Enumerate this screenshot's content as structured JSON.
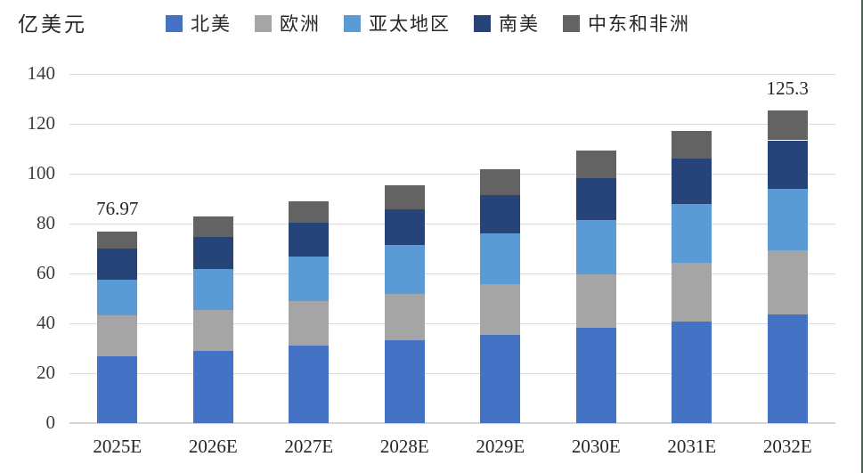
{
  "chart": {
    "unit_label": "亿美元"
  },
  "chart_data": {
    "type": "bar",
    "stacked": true,
    "title": "",
    "xlabel": "",
    "ylabel": "亿美元",
    "categories": [
      "2025E",
      "2026E",
      "2027E",
      "2028E",
      "2029E",
      "2030E",
      "2031E",
      "2032E"
    ],
    "series": [
      {
        "name": "北美",
        "color": "#4472C4",
        "values": [
          26.9,
          28.9,
          31.0,
          33.2,
          35.5,
          38.2,
          40.8,
          43.6
        ]
      },
      {
        "name": "欧洲",
        "color": "#A5A5A5",
        "values": [
          16.3,
          16.5,
          18.0,
          18.7,
          20.3,
          21.3,
          23.4,
          25.6
        ]
      },
      {
        "name": "亚太地区",
        "color": "#5B9BD5",
        "values": [
          14.4,
          16.5,
          17.9,
          19.7,
          20.2,
          22.0,
          23.6,
          24.8
        ]
      },
      {
        "name": "南美",
        "color": "#264478",
        "values": [
          12.3,
          12.8,
          13.3,
          14.1,
          15.6,
          16.7,
          18.2,
          19.4
        ]
      },
      {
        "name": "中东和非洲",
        "color": "#636363",
        "values": [
          7.07,
          8.0,
          8.7,
          9.5,
          10.3,
          11.0,
          11.1,
          11.9
        ]
      }
    ],
    "totals": [
      76.97,
      82.7,
      88.9,
      95.2,
      101.9,
      109.2,
      117.1,
      125.3
    ],
    "annotations": [
      {
        "category": "2025E",
        "text": "76.97"
      },
      {
        "category": "2032E",
        "text": "125.3"
      }
    ],
    "yticks": [
      0,
      20,
      40,
      60,
      80,
      100,
      120,
      140
    ],
    "ylim": [
      0,
      140
    ],
    "grid": "horizontal",
    "gridline_color": "#DCDCDC",
    "legend_position": "top"
  }
}
